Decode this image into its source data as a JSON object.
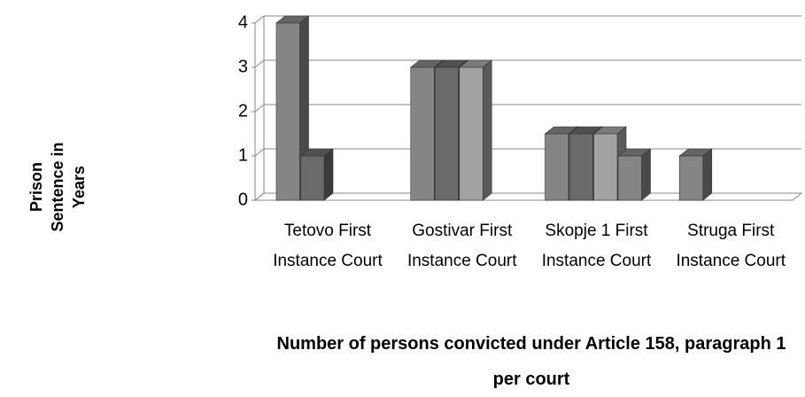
{
  "chart_data": {
    "type": "bar3d",
    "x_label": "Number of persons convicted under Article 158, paragraph 1 per court",
    "y_label": "Prison Sentence in Years",
    "categories": [
      "Tetovo First Instance Court",
      "Gostivar First Instance Court",
      "Skopje 1 First Instance Court",
      "Struga First Instance Court"
    ],
    "series": [
      {
        "color": "#858585",
        "values": [
          4,
          3,
          1.5,
          1
        ]
      },
      {
        "color": "#6a6a6a",
        "values": [
          1,
          3,
          1.5,
          null
        ]
      },
      {
        "color": "#a3a3a3",
        "values": [
          null,
          3,
          1.5,
          null
        ]
      },
      {
        "color": "#858585",
        "values": [
          null,
          null,
          1,
          null
        ]
      }
    ],
    "ylim": [
      0,
      4
    ],
    "yticks": [
      0,
      1,
      2,
      3,
      4
    ],
    "grid": true
  }
}
